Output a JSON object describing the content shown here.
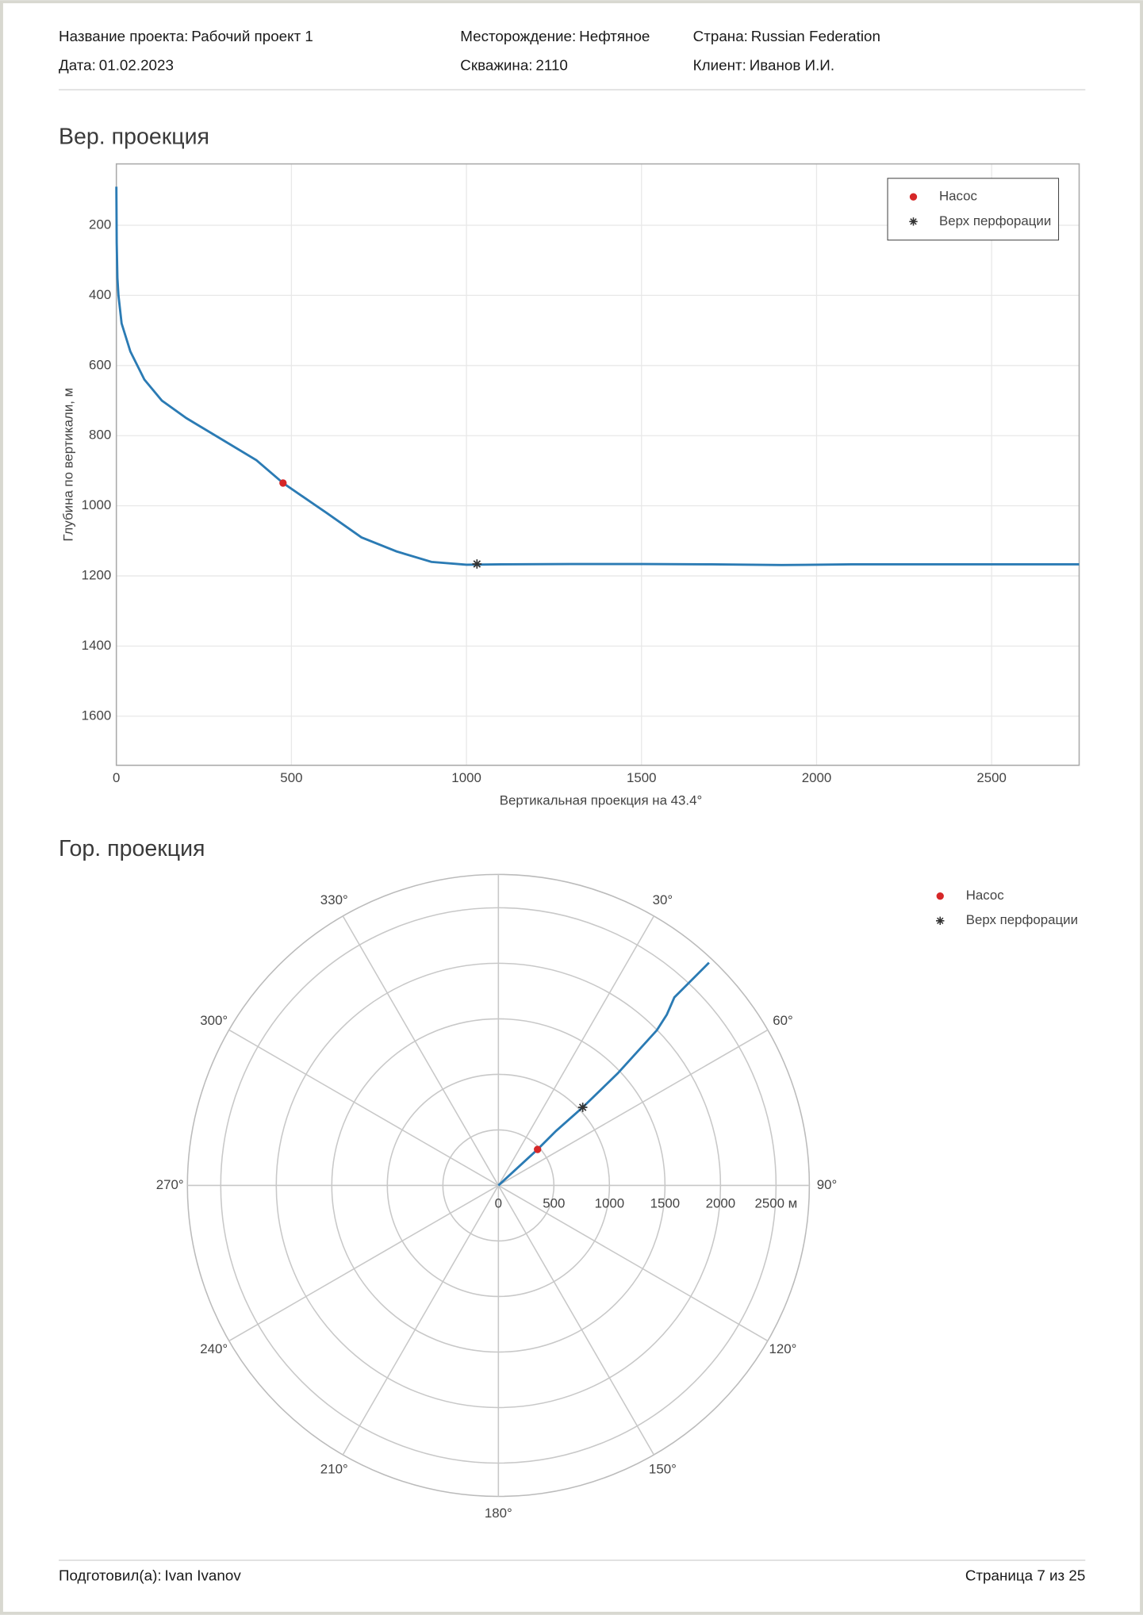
{
  "header": {
    "project_label": "Название проекта:",
    "project": "Рабочий проект 1",
    "field_label": "Месторождение:",
    "field": "Нефтяное",
    "country_label": "Страна:",
    "country": "Russian Federation",
    "date_label": "Дата:",
    "date": "01.02.2023",
    "well_label": "Скважина:",
    "well": "2110",
    "client_label": "Клиент:",
    "client": "Иванов И.И."
  },
  "chart_data": [
    {
      "type": "line",
      "title": "Вер. проекция",
      "x_label": "Вертикальная проекция на 43.4°",
      "y_label": "Глубина по вертикали, м",
      "xlim": [
        0,
        2750
      ],
      "xticks": [
        0,
        500,
        1000,
        1500,
        2000,
        2500
      ],
      "ylim": [
        1740,
        25
      ],
      "yticks": [
        200,
        400,
        600,
        800,
        1000,
        1200,
        1400,
        1600
      ],
      "grid": true,
      "legend": "upper right",
      "series": [
        {
          "color": "#2b7bb4",
          "x": [
            0,
            1,
            3,
            6,
            15,
            40,
            80,
            130,
            200,
            300,
            400,
            476,
            600,
            700,
            800,
            900,
            1000,
            1100,
            1300,
            1500,
            1700,
            1900,
            2100,
            2300,
            2500,
            2750
          ],
          "values": [
            90,
            250,
            350,
            400,
            480,
            560,
            640,
            700,
            750,
            810,
            870,
            935,
            1020,
            1090,
            1130,
            1160,
            1168,
            1167,
            1166,
            1166,
            1167,
            1169,
            1167,
            1167,
            1167,
            1167
          ]
        },
        {
          "name": "Насос",
          "color": "#d62728",
          "marker": "circle",
          "x": [
            476
          ],
          "values": [
            935
          ]
        },
        {
          "name": "Верх перфорации",
          "color": "#333333",
          "marker": "star",
          "x": [
            1030
          ],
          "values": [
            1166
          ]
        }
      ]
    },
    {
      "type": "polar",
      "title": "Гор. проекция",
      "direction": "clockwise",
      "zero": "north",
      "legend": "upper right",
      "rlim": [
        0,
        2800
      ],
      "rticks": [
        0,
        500,
        1000,
        1500,
        2000,
        {
          "value": 2500,
          "label": "2500 м"
        }
      ],
      "thetaticks": [
        {
          "value": 0,
          "label": null
        },
        {
          "value": 30,
          "label": "30°"
        },
        {
          "value": 60,
          "label": "60°"
        },
        {
          "value": 90,
          "label": "90°"
        },
        {
          "value": 120,
          "label": "120°"
        },
        {
          "value": 150,
          "label": "150°"
        },
        {
          "value": 180,
          "label": "180°"
        },
        {
          "value": 210,
          "label": "210°"
        },
        {
          "value": 240,
          "label": "240°"
        },
        {
          "value": 270,
          "label": "270°"
        },
        {
          "value": 300,
          "label": "300°"
        },
        {
          "value": 330,
          "label": "330°"
        }
      ],
      "series": [
        {
          "color": "#2b7bb4",
          "r": [
            0,
            479,
            714,
            1035,
            1474,
            1997,
            2160,
            2319,
            2450,
            2760
          ],
          "theta": [
            0,
            47.4,
            46.6,
            47.2,
            46.8,
            45.6,
            44.6,
            43.1,
            43.2,
            43.4
          ]
        },
        {
          "name": "Насос",
          "color": "#d62728",
          "marker": "circle",
          "r": [
            479
          ],
          "theta": [
            47.4
          ]
        },
        {
          "name": "Верх перфорации",
          "color": "#333333",
          "marker": "star",
          "r": [
            1035
          ],
          "theta": [
            47.2
          ]
        }
      ]
    }
  ],
  "footer": {
    "prepared_label": "Подготовил(а):",
    "prepared": "Ivan Ivanov",
    "page": "Страница 7 из 25"
  }
}
